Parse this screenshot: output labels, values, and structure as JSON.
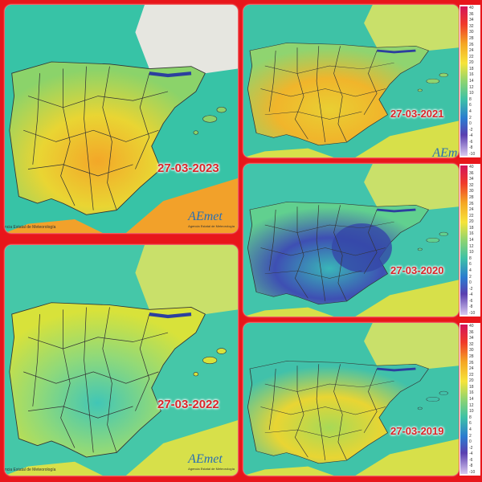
{
  "panels": [
    {
      "date": "27-03-2023",
      "credit": "ncia Estatal de Meteorología",
      "logo": "AEmet",
      "logo_sub": "Agencia Estatal de Meteorología"
    },
    {
      "date": "27-03-2022",
      "credit": "ncia Estatal de Meteorología",
      "logo": "AEmet",
      "logo_sub": "Agencia Estatal de Meteorología"
    },
    {
      "date": "27-03-2021",
      "logo": "AEmet"
    },
    {
      "date": "27-03-2020"
    },
    {
      "date": "27-03-2019"
    }
  ],
  "legend": {
    "ticks": [
      "40",
      "36",
      "34",
      "32",
      "30",
      "28",
      "26",
      "24",
      "22",
      "20",
      "18",
      "16",
      "14",
      "12",
      "10",
      "8",
      "6",
      "4",
      "2",
      "0",
      "-2",
      "-4",
      "-6",
      "-8",
      "-10"
    ]
  }
}
